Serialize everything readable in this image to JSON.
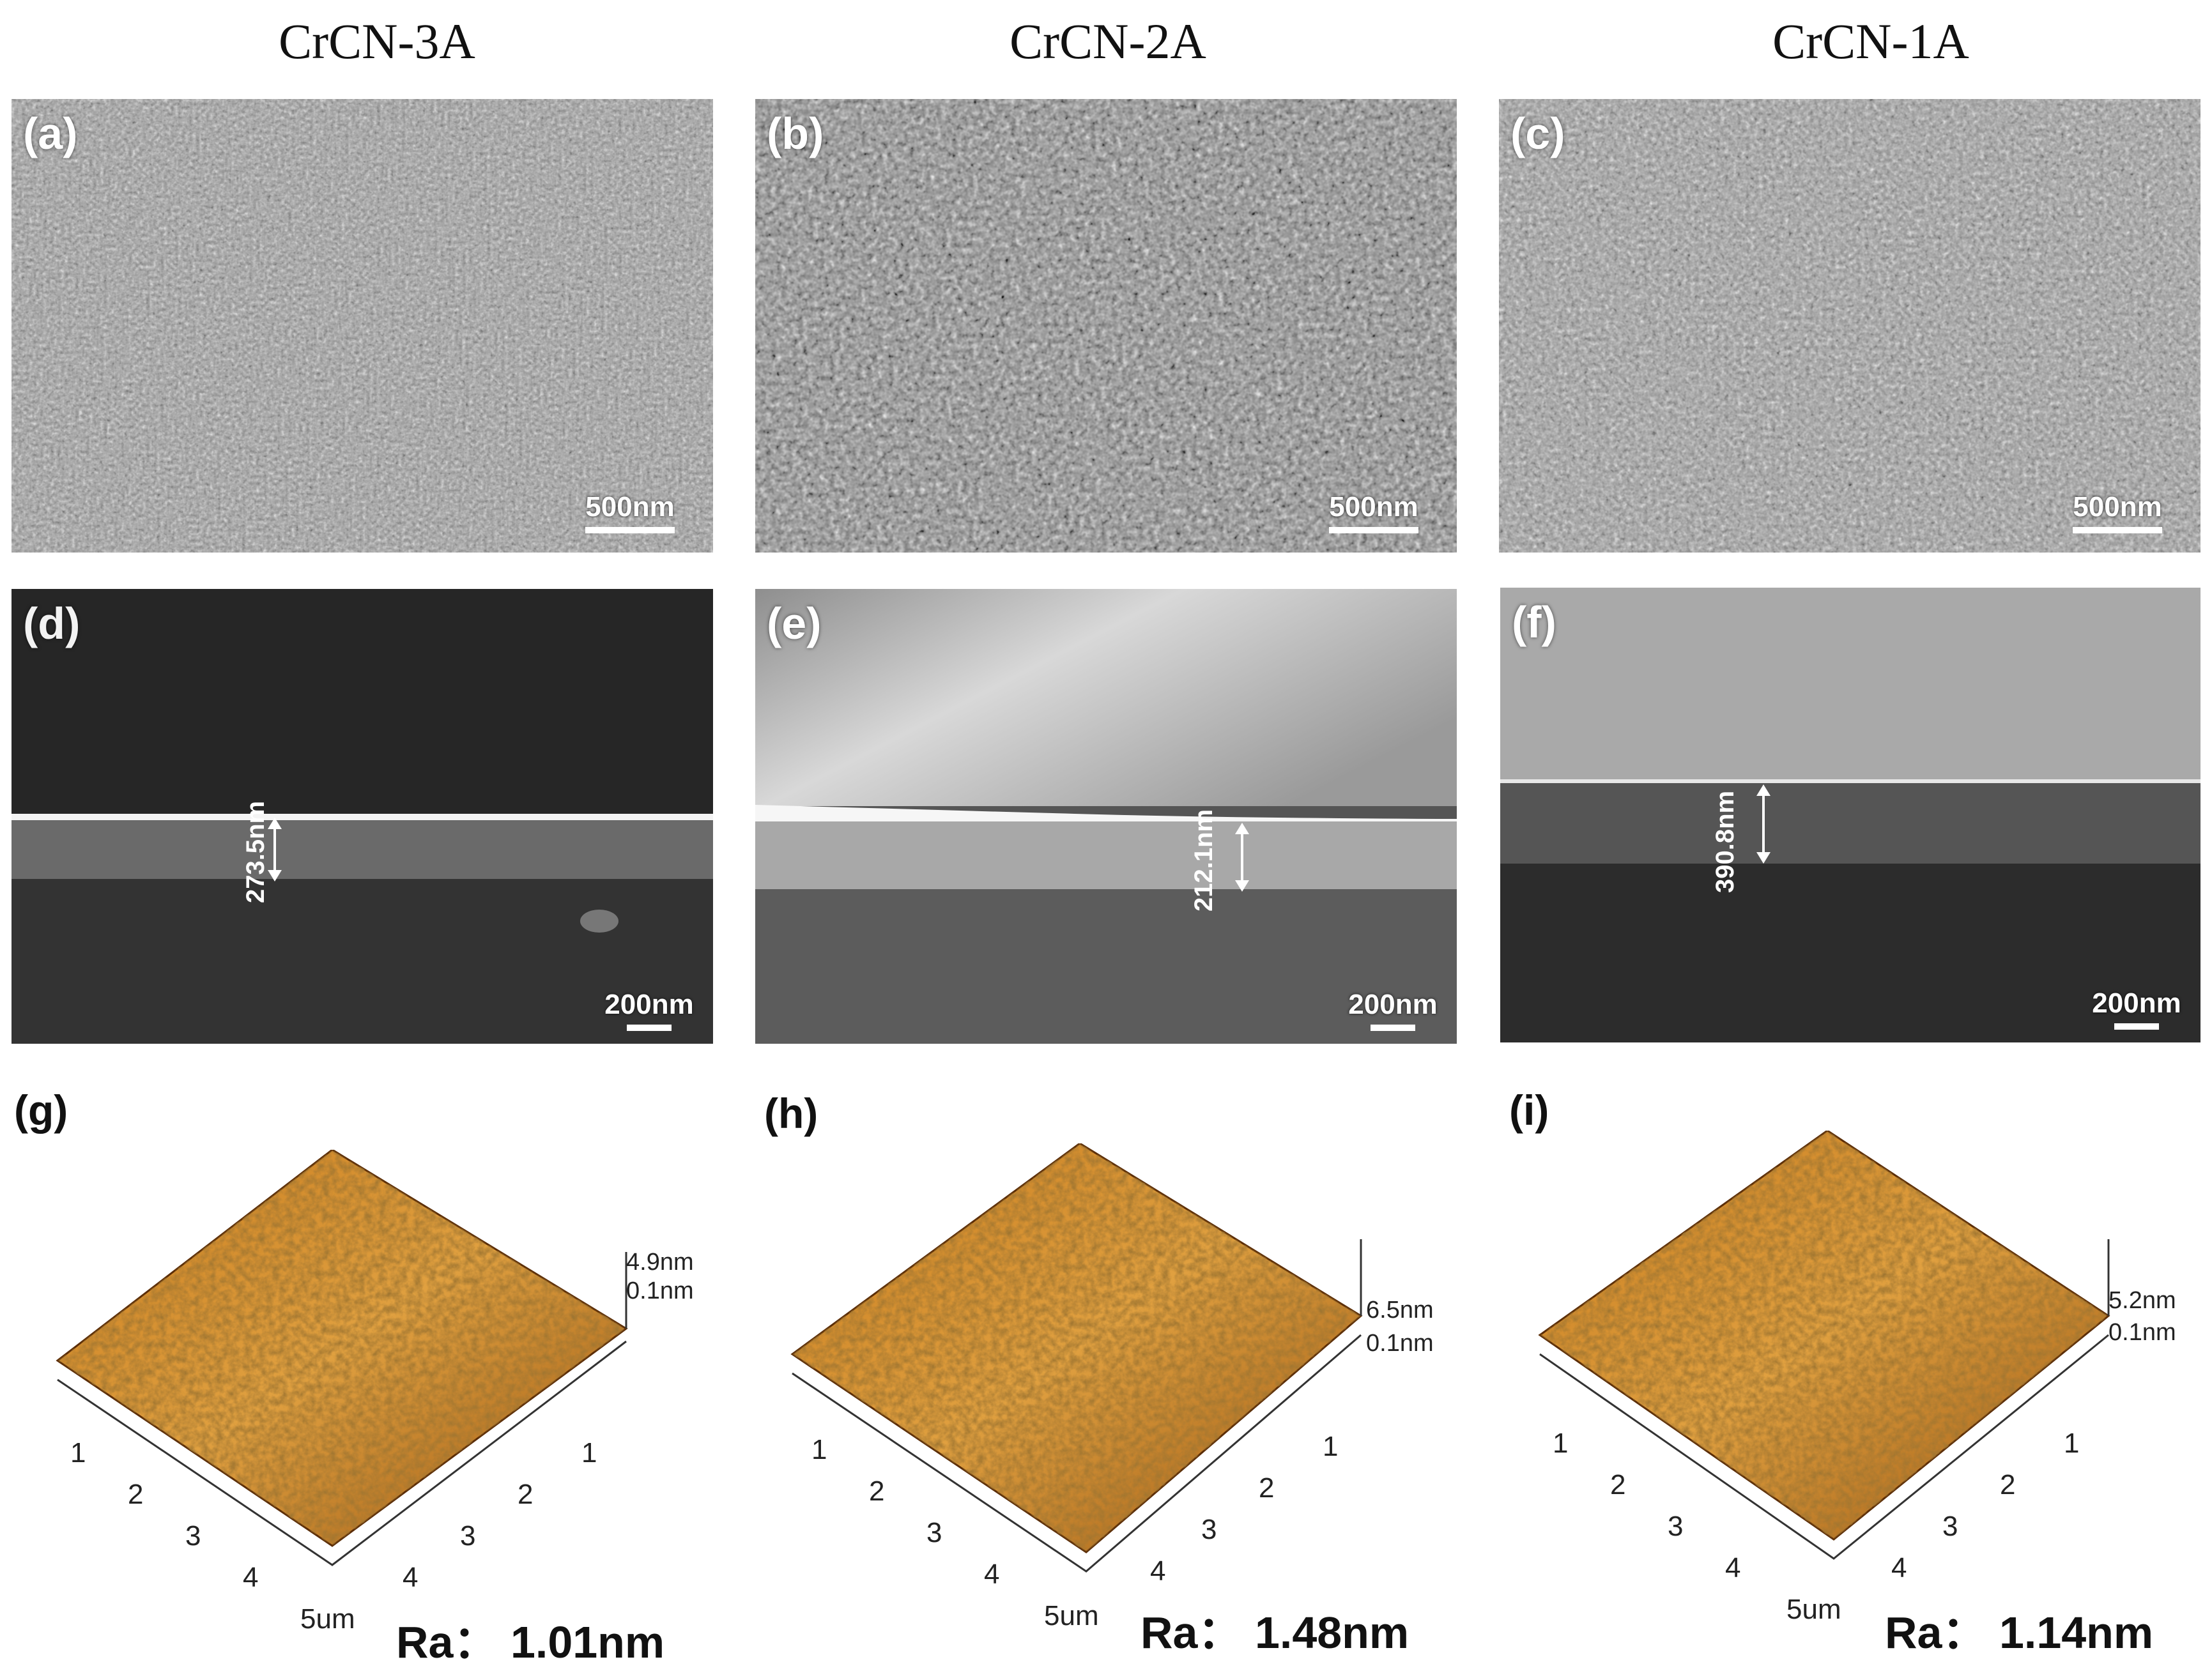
{
  "columns": [
    "CrCN-3A",
    "CrCN-2A",
    "CrCN-1A"
  ],
  "sem_top": [
    {
      "label": "(a)",
      "scale": "500nm"
    },
    {
      "label": "(b)",
      "scale": "500nm"
    },
    {
      "label": "(c)",
      "scale": "500nm"
    }
  ],
  "sem_cross": [
    {
      "label": "(d)",
      "scale": "200nm",
      "thickness": "273.5nm"
    },
    {
      "label": "(e)",
      "scale": "200nm",
      "thickness": "212.1nm"
    },
    {
      "label": "(f)",
      "scale": "200nm",
      "thickness": "390.8nm"
    }
  ],
  "afm": [
    {
      "label": "(g)",
      "zmax": "4.9nm",
      "zmin": "0.1nm",
      "ra_prefix": "Ra：",
      "ra_value": "1.01nm"
    },
    {
      "label": "(h)",
      "zmax": "6.5nm",
      "zmin": "0.1nm",
      "ra_prefix": "Ra：",
      "ra_value": "1.48nm"
    },
    {
      "label": "(i)",
      "zmax": "5.2nm",
      "zmin": "0.1nm",
      "ra_prefix": "Ra：",
      "ra_value": "1.14nm"
    }
  ],
  "afm_axis": {
    "left_ticks": [
      "1",
      "2",
      "3",
      "4"
    ],
    "corner": "5um",
    "right_ticks": [
      "1",
      "2",
      "3",
      "4"
    ]
  },
  "colors": {
    "afm_dark": "#5a2c06",
    "afm_mid": "#b56a14",
    "afm_light": "#f2c35e"
  }
}
